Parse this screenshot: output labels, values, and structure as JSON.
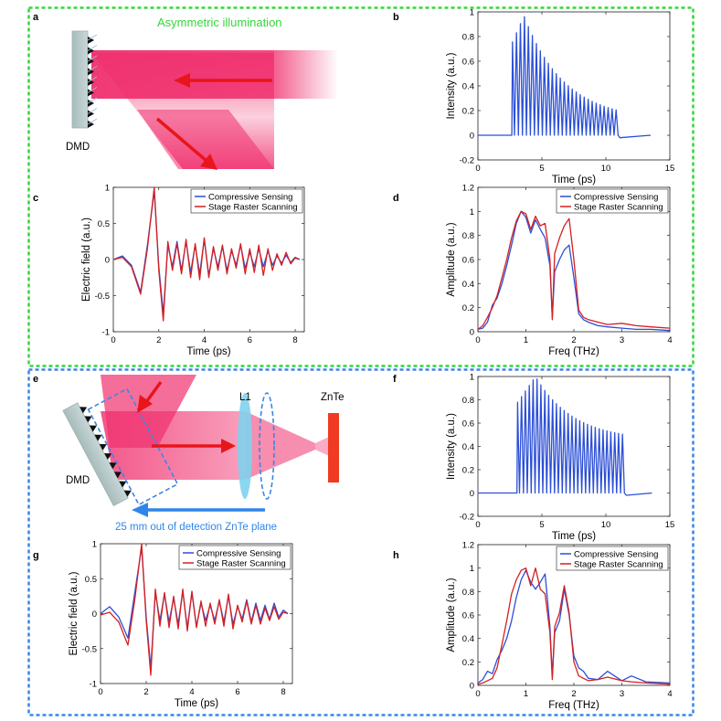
{
  "figure": {
    "panel_labels": {
      "a": "a",
      "b": "b",
      "c": "c",
      "d": "d",
      "e": "e",
      "f": "f",
      "g": "g",
      "h": "h"
    },
    "colors": {
      "green_box": "#35d63a",
      "blue_box": "#3a86e6",
      "cs": "#2b4fd6",
      "rs": "#d61f1f",
      "beam": "#f0306e",
      "arrow_red": "#e8151b",
      "arrow_blue": "#2f86e8",
      "lens": "#7fd2ee",
      "znte": "#f03a22"
    }
  },
  "diagram_a": {
    "title": "Asymmetric illumination",
    "dmd_label": "DMD"
  },
  "diagram_e": {
    "dmd_label": "DMD",
    "lens_label": "L1",
    "crystal_label": "ZnTe",
    "offset_label": "25 mm out of detection ZnTe plane"
  },
  "legend": {
    "cs": "Compressive Sensing",
    "rs": "Stage Raster Scanning"
  },
  "chart_data": [
    {
      "id": "b",
      "type": "line",
      "xlabel": "Time (ps)",
      "ylabel": "Intensity (a.u.)",
      "xlim": [
        0,
        15
      ],
      "ylim": [
        -0.2,
        1
      ],
      "xticks": [
        0,
        5,
        10,
        15
      ],
      "yticks": [
        -0.2,
        0,
        0.2,
        0.4,
        0.6,
        0.8,
        1
      ],
      "ytick_labels": [
        "-0.2",
        "0",
        "0.2",
        "0.4",
        "0.6",
        "0.8",
        "1"
      ],
      "series": [
        {
          "name": "Intensity",
          "color": "#2b4fd6",
          "pulse_train": {
            "start": 2.7,
            "end": 10.8,
            "count": 27,
            "rise_end": 3.6,
            "peak": 0.97,
            "end_level": 0.12,
            "baseline": 0,
            "stop": 13.5
          }
        }
      ]
    },
    {
      "id": "c",
      "type": "line",
      "xlabel": "Time (ps)",
      "ylabel": "Electric field (a.u.)",
      "xlim": [
        0,
        8.4
      ],
      "ylim": [
        -1,
        1
      ],
      "xticks": [
        0,
        2,
        4,
        6,
        8
      ],
      "yticks": [
        -1,
        -0.5,
        0,
        0.5,
        1
      ],
      "ytick_labels": [
        "-1",
        "-0.5",
        "0",
        "0.5",
        "1"
      ],
      "legend": "top-right",
      "series": [
        {
          "name": "Compressive Sensing",
          "color": "#2b4fd6",
          "x": [
            0,
            0.4,
            0.8,
            1.2,
            1.5,
            1.8,
            2.0,
            2.2,
            2.4,
            2.6,
            2.8,
            3.0,
            3.2,
            3.4,
            3.6,
            3.8,
            4.0,
            4.2,
            4.4,
            4.6,
            4.8,
            5.0,
            5.2,
            5.4,
            5.6,
            5.8,
            6.0,
            6.2,
            6.4,
            6.6,
            6.8,
            7.0,
            7.2,
            7.4,
            7.6,
            7.8,
            8.0,
            8.2
          ],
          "y": [
            0,
            0.05,
            -0.08,
            -0.45,
            0.2,
            0.95,
            -0.1,
            -0.75,
            0.2,
            -0.1,
            0.25,
            -0.15,
            0.25,
            -0.18,
            0.2,
            -0.2,
            0.28,
            -0.22,
            0.15,
            -0.1,
            0.18,
            -0.15,
            0.12,
            -0.08,
            0.2,
            -0.12,
            0.1,
            -0.1,
            0.15,
            -0.1,
            0.12,
            -0.08,
            0.05,
            -0.05,
            0.06,
            -0.04,
            0.03,
            0
          ]
        },
        {
          "name": "Stage Raster Scanning",
          "color": "#d61f1f",
          "x": [
            0,
            0.4,
            0.8,
            1.2,
            1.5,
            1.8,
            2.0,
            2.2,
            2.4,
            2.6,
            2.8,
            3.0,
            3.2,
            3.4,
            3.6,
            3.8,
            4.0,
            4.2,
            4.4,
            4.6,
            4.8,
            5.0,
            5.2,
            5.4,
            5.6,
            5.8,
            6.0,
            6.2,
            6.4,
            6.6,
            6.8,
            7.0,
            7.2,
            7.4,
            7.6,
            7.8,
            8.0,
            8.2
          ],
          "y": [
            0,
            0.03,
            -0.1,
            -0.48,
            0.15,
            1.0,
            -0.15,
            -0.85,
            0.25,
            -0.15,
            0.22,
            -0.2,
            0.28,
            -0.25,
            0.22,
            -0.28,
            0.3,
            -0.25,
            0.18,
            -0.15,
            0.2,
            -0.2,
            0.15,
            -0.12,
            0.22,
            -0.2,
            0.15,
            -0.18,
            0.2,
            -0.22,
            0.15,
            -0.15,
            0.08,
            -0.08,
            0.1,
            -0.06,
            0.02,
            0
          ]
        }
      ]
    },
    {
      "id": "d",
      "type": "line",
      "xlabel": "Freq (THz)",
      "ylabel": "Amplitude (a.u.)",
      "xlim": [
        0,
        4
      ],
      "ylim": [
        0,
        1.2
      ],
      "xticks": [
        0,
        1,
        2,
        3,
        4
      ],
      "yticks": [
        0,
        0.2,
        0.4,
        0.6,
        0.8,
        1,
        1.2
      ],
      "ytick_labels": [
        "0",
        "0.2",
        "0.4",
        "0.6",
        "0.8",
        "1",
        "1.2"
      ],
      "legend": "top-right",
      "series": [
        {
          "name": "Compressive Sensing",
          "color": "#2b4fd6",
          "x": [
            0,
            0.1,
            0.2,
            0.3,
            0.4,
            0.5,
            0.6,
            0.7,
            0.8,
            0.9,
            1.0,
            1.1,
            1.2,
            1.3,
            1.4,
            1.5,
            1.55,
            1.6,
            1.7,
            1.8,
            1.9,
            2.0,
            2.1,
            2.2,
            2.3,
            2.5,
            2.7,
            3.0,
            3.3,
            3.6,
            4.0
          ],
          "y": [
            0.02,
            0.03,
            0.08,
            0.22,
            0.28,
            0.4,
            0.55,
            0.72,
            0.9,
            1.0,
            0.95,
            0.82,
            0.93,
            0.85,
            0.78,
            0.55,
            0.12,
            0.5,
            0.6,
            0.68,
            0.72,
            0.45,
            0.15,
            0.1,
            0.08,
            0.05,
            0.04,
            0.03,
            0.02,
            0.02,
            0.01
          ]
        },
        {
          "name": "Stage Raster Scanning",
          "color": "#d61f1f",
          "x": [
            0,
            0.1,
            0.2,
            0.3,
            0.4,
            0.5,
            0.6,
            0.7,
            0.8,
            0.9,
            1.0,
            1.1,
            1.2,
            1.3,
            1.4,
            1.5,
            1.55,
            1.6,
            1.7,
            1.8,
            1.9,
            2.0,
            2.1,
            2.2,
            2.3,
            2.5,
            2.7,
            3.0,
            3.3,
            3.6,
            4.0
          ],
          "y": [
            0.02,
            0.05,
            0.12,
            0.2,
            0.3,
            0.45,
            0.6,
            0.78,
            0.92,
            1.0,
            0.98,
            0.85,
            0.96,
            0.88,
            0.9,
            0.6,
            0.1,
            0.65,
            0.78,
            0.88,
            0.94,
            0.6,
            0.18,
            0.12,
            0.1,
            0.08,
            0.06,
            0.07,
            0.05,
            0.04,
            0.03
          ]
        }
      ]
    },
    {
      "id": "f",
      "type": "line",
      "xlabel": "Time (ps)",
      "ylabel": "Intensity (a.u.)",
      "xlim": [
        0,
        15
      ],
      "ylim": [
        -0.2,
        1
      ],
      "xticks": [
        0,
        5,
        10,
        15
      ],
      "yticks": [
        -0.2,
        0,
        0.2,
        0.4,
        0.6,
        0.8,
        1
      ],
      "ytick_labels": [
        "-0.2",
        "0",
        "0.2",
        "0.4",
        "0.6",
        "0.8",
        "1"
      ],
      "series": [
        {
          "name": "Intensity",
          "color": "#2b4fd6",
          "pulse_train": {
            "start": 3.1,
            "end": 11.3,
            "count": 28,
            "rise_end": 4.5,
            "peak": 1.0,
            "end_level": 0.45,
            "baseline": 0,
            "stop": 13.6
          }
        }
      ]
    },
    {
      "id": "g",
      "type": "line",
      "xlabel": "Time (ps)",
      "ylabel": "Electric field (a.u.)",
      "xlim": [
        0,
        8.4
      ],
      "ylim": [
        -1,
        1
      ],
      "xticks": [
        0,
        2,
        4,
        6,
        8
      ],
      "yticks": [
        -1,
        -0.5,
        0,
        0.5,
        1
      ],
      "ytick_labels": [
        "-1",
        "-0.5",
        "0",
        "0.5",
        "1"
      ],
      "legend": "top-right",
      "series": [
        {
          "name": "Compressive Sensing",
          "color": "#2b4fd6",
          "x": [
            0,
            0.4,
            0.8,
            1.2,
            1.5,
            1.8,
            2.0,
            2.2,
            2.4,
            2.6,
            2.8,
            3.0,
            3.2,
            3.4,
            3.6,
            3.8,
            4.0,
            4.2,
            4.4,
            4.6,
            4.8,
            5.0,
            5.2,
            5.4,
            5.6,
            5.8,
            6.0,
            6.2,
            6.4,
            6.6,
            6.8,
            7.0,
            7.2,
            7.4,
            7.6,
            7.8,
            8.0,
            8.2
          ],
          "y": [
            0,
            0.1,
            -0.05,
            -0.35,
            0.3,
            0.95,
            -0.05,
            -0.78,
            0.3,
            -0.1,
            0.28,
            -0.12,
            0.22,
            -0.15,
            0.32,
            -0.2,
            0.3,
            -0.18,
            0.15,
            -0.1,
            0.12,
            -0.1,
            0.18,
            -0.12,
            0.25,
            -0.15,
            0.1,
            -0.08,
            0.2,
            -0.12,
            0.15,
            -0.1,
            0.12,
            -0.08,
            0.15,
            -0.05,
            0.05,
            0
          ]
        },
        {
          "name": "Stage Raster Scanning",
          "color": "#d61f1f",
          "x": [
            0,
            0.4,
            0.8,
            1.2,
            1.5,
            1.8,
            2.0,
            2.2,
            2.4,
            2.6,
            2.8,
            3.0,
            3.2,
            3.4,
            3.6,
            3.8,
            4.0,
            4.2,
            4.4,
            4.6,
            4.8,
            5.0,
            5.2,
            5.4,
            5.6,
            5.8,
            6.0,
            6.2,
            6.4,
            6.6,
            6.8,
            7.0,
            7.2,
            7.4,
            7.6,
            7.8,
            8.0,
            8.2
          ],
          "y": [
            -0.02,
            0.02,
            -0.12,
            -0.45,
            0.2,
            1.0,
            -0.1,
            -0.88,
            0.35,
            -0.18,
            0.3,
            -0.2,
            0.25,
            -0.22,
            0.35,
            -0.25,
            0.32,
            -0.2,
            0.18,
            -0.18,
            0.15,
            -0.15,
            0.2,
            -0.18,
            0.28,
            -0.22,
            0.12,
            -0.12,
            0.18,
            -0.15,
            0.12,
            -0.15,
            0.08,
            -0.1,
            0.1,
            -0.08,
            0.02,
            0
          ]
        }
      ]
    },
    {
      "id": "h",
      "type": "line",
      "xlabel": "Freq (THz)",
      "ylabel": "Amplitude (a.u.)",
      "xlim": [
        0,
        4
      ],
      "ylim": [
        0,
        1.2
      ],
      "xticks": [
        0,
        1,
        2,
        3,
        4
      ],
      "yticks": [
        0,
        0.2,
        0.4,
        0.6,
        0.8,
        1,
        1.2
      ],
      "ytick_labels": [
        "0",
        "0.2",
        "0.4",
        "0.6",
        "0.8",
        "1",
        "1.2"
      ],
      "legend": "top-right",
      "series": [
        {
          "name": "Compressive Sensing",
          "color": "#2b4fd6",
          "x": [
            0,
            0.1,
            0.2,
            0.3,
            0.4,
            0.5,
            0.6,
            0.7,
            0.8,
            0.9,
            1.0,
            1.1,
            1.2,
            1.3,
            1.4,
            1.5,
            1.55,
            1.6,
            1.7,
            1.8,
            1.9,
            2.0,
            2.1,
            2.2,
            2.3,
            2.5,
            2.7,
            3.0,
            3.2,
            3.5,
            4.0
          ],
          "y": [
            0.02,
            0.05,
            0.12,
            0.1,
            0.22,
            0.3,
            0.4,
            0.55,
            0.75,
            0.9,
            0.98,
            0.88,
            0.82,
            0.88,
            0.95,
            0.5,
            0.08,
            0.45,
            0.55,
            0.82,
            0.6,
            0.25,
            0.15,
            0.12,
            0.06,
            0.05,
            0.12,
            0.04,
            0.08,
            0.03,
            0.02
          ]
        },
        {
          "name": "Stage Raster Scanning",
          "color": "#d61f1f",
          "x": [
            0,
            0.1,
            0.2,
            0.3,
            0.4,
            0.5,
            0.6,
            0.7,
            0.8,
            0.9,
            1.0,
            1.1,
            1.2,
            1.3,
            1.4,
            1.5,
            1.55,
            1.6,
            1.7,
            1.8,
            1.9,
            2.0,
            2.1,
            2.2,
            2.3,
            2.5,
            2.7,
            3.0,
            3.2,
            3.5,
            4.0
          ],
          "y": [
            0.01,
            0.02,
            0.04,
            0.06,
            0.15,
            0.35,
            0.55,
            0.78,
            0.9,
            0.98,
            1.0,
            0.85,
            1.0,
            0.82,
            0.78,
            0.45,
            0.05,
            0.5,
            0.62,
            0.85,
            0.62,
            0.2,
            0.08,
            0.06,
            0.04,
            0.05,
            0.07,
            0.04,
            0.03,
            0.02,
            0.01
          ]
        }
      ]
    }
  ]
}
